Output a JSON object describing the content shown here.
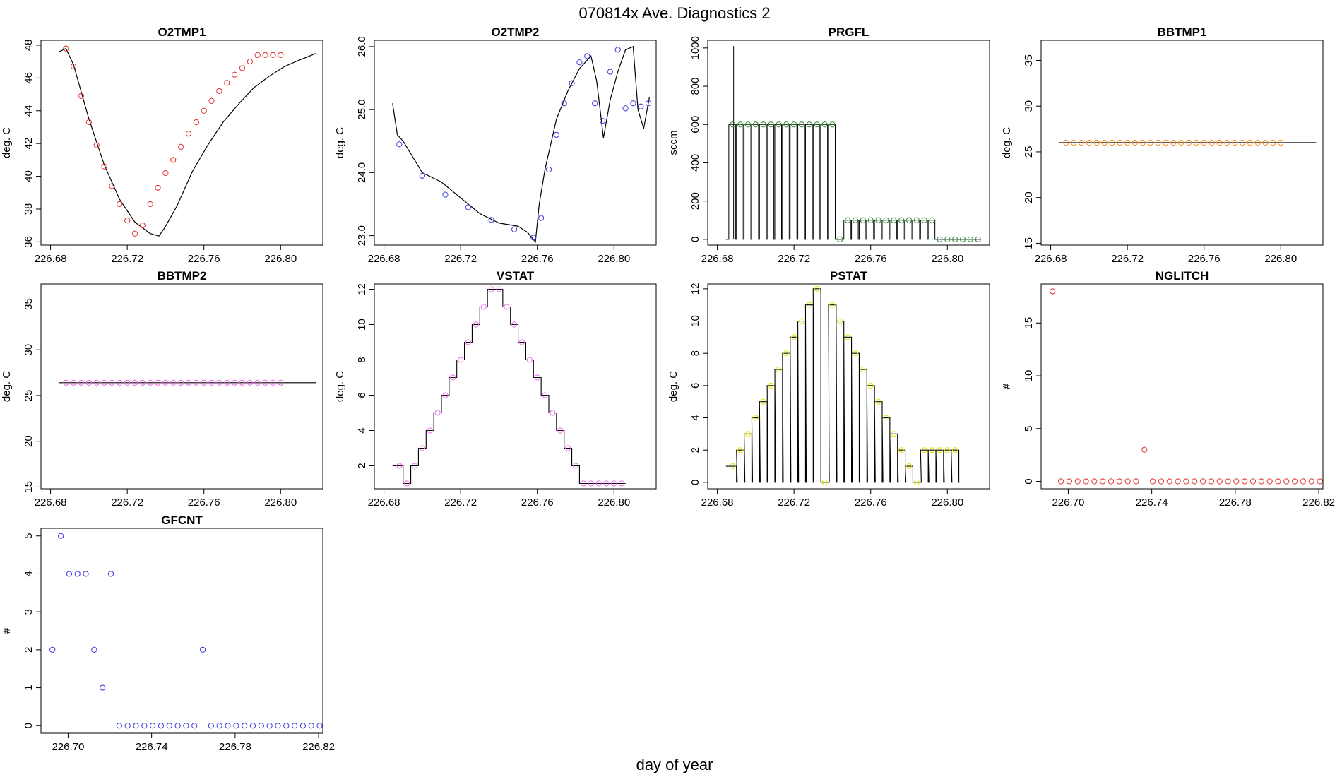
{
  "figure": {
    "title": "070814x   Ave. Diagnostics 2",
    "xlabel": "day of year"
  },
  "colors": {
    "black": "#000000",
    "red": "#e03030",
    "blue": "#3a3ae0",
    "green": "#2e8b2e",
    "orange": "#ff8c1a",
    "magenta": "#ee66ee",
    "yellow": "#e6e600"
  },
  "chart_data": [
    {
      "id": "o2tmp1",
      "type": "line",
      "title": "O2TMP1",
      "ylabel": "deg. C",
      "xlim": [
        226.675,
        226.822
      ],
      "ylim": [
        35.8,
        48.3
      ],
      "xticks": [
        226.68,
        226.72,
        226.76,
        226.8
      ],
      "xtick_labels": [
        "226.68",
        "226.72",
        "226.76",
        "226.80"
      ],
      "yticks": [
        36,
        38,
        40,
        42,
        44,
        46,
        48
      ],
      "ytick_labels": [
        "36",
        "38",
        "40",
        "42",
        "44",
        "46",
        "48"
      ],
      "line": {
        "color": "#000000",
        "x": [
          226.6845,
          226.688,
          226.692,
          226.7,
          226.708,
          226.716,
          226.724,
          226.732,
          226.7365,
          226.7395,
          226.746,
          226.754,
          226.762,
          226.77,
          226.778,
          226.786,
          226.794,
          226.802,
          226.81,
          226.8185
        ],
        "y": [
          47.6,
          47.8,
          46.8,
          43.5,
          40.7,
          38.6,
          37.2,
          36.5,
          36.35,
          36.85,
          38.2,
          40.3,
          41.9,
          43.3,
          44.4,
          45.4,
          46.1,
          46.7,
          47.1,
          47.5
        ]
      },
      "points": {
        "color": "#e03030",
        "x": [
          226.688,
          226.692,
          226.696,
          226.7,
          226.704,
          226.708,
          226.712,
          226.716,
          226.72,
          226.724,
          226.728,
          226.732,
          226.736,
          226.74,
          226.744,
          226.748,
          226.752,
          226.756,
          226.76,
          226.764,
          226.768,
          226.772,
          226.776,
          226.78,
          226.784,
          226.788,
          226.792,
          226.796,
          226.8
        ],
        "y": [
          47.8,
          46.7,
          44.9,
          43.3,
          41.9,
          40.6,
          39.4,
          38.3,
          37.3,
          36.5,
          37.0,
          38.3,
          39.3,
          40.2,
          41.0,
          41.8,
          42.6,
          43.3,
          44.0,
          44.6,
          45.2,
          45.7,
          46.2,
          46.6,
          47.0,
          47.4,
          47.4,
          47.4,
          47.4
        ]
      }
    },
    {
      "id": "o2tmp2",
      "type": "line",
      "title": "O2TMP2",
      "ylabel": "deg. C",
      "xlim": [
        226.675,
        226.822
      ],
      "ylim": [
        22.85,
        26.1
      ],
      "xticks": [
        226.68,
        226.72,
        226.76,
        226.8
      ],
      "xtick_labels": [
        "226.68",
        "226.72",
        "226.76",
        "226.80"
      ],
      "yticks": [
        23,
        24,
        25,
        26
      ],
      "ytick_labels": [
        "23.0",
        "24.0",
        "25.0",
        "26.0"
      ],
      "line": {
        "color": "#000000",
        "x": [
          226.6845,
          226.687,
          226.69,
          226.695,
          226.7,
          226.71,
          226.72,
          226.73,
          226.74,
          226.75,
          226.755,
          226.759,
          226.761,
          226.764,
          226.77,
          226.776,
          226.782,
          226.788,
          226.791,
          226.7945,
          226.798,
          226.802,
          226.806,
          226.81,
          226.8125,
          226.8155,
          226.8185
        ],
        "y": [
          25.1,
          24.6,
          24.5,
          24.25,
          24.0,
          23.85,
          23.6,
          23.35,
          23.2,
          23.15,
          23.05,
          22.9,
          23.5,
          24.05,
          24.85,
          25.3,
          25.65,
          25.85,
          25.45,
          24.55,
          25.15,
          25.6,
          25.95,
          26.0,
          25.0,
          24.7,
          25.2
        ]
      },
      "points": {
        "color": "#3a3ae0",
        "x": [
          226.688,
          226.7,
          226.712,
          226.724,
          226.736,
          226.748,
          226.758,
          226.762,
          226.766,
          226.77,
          226.774,
          226.778,
          226.782,
          226.786,
          226.79,
          226.794,
          226.798,
          226.802,
          226.806,
          226.81,
          226.814,
          226.818
        ],
        "y": [
          24.45,
          23.95,
          23.65,
          23.45,
          23.25,
          23.1,
          22.97,
          23.28,
          24.05,
          24.6,
          25.1,
          25.42,
          25.75,
          25.85,
          25.1,
          24.82,
          25.6,
          25.95,
          25.02,
          25.1,
          25.05,
          25.1
        ]
      }
    },
    {
      "id": "prgfl",
      "type": "line",
      "title": "PRGFL",
      "ylabel": "sccm",
      "xlim": [
        226.675,
        226.822
      ],
      "ylim": [
        -30,
        1040
      ],
      "xticks": [
        226.68,
        226.72,
        226.76,
        226.8
      ],
      "xtick_labels": [
        "226.68",
        "226.72",
        "226.76",
        "226.80"
      ],
      "yticks": [
        0,
        200,
        400,
        600,
        800,
        1000
      ],
      "ytick_labels": [
        "0",
        "200",
        "400",
        "600",
        "800",
        "1000"
      ],
      "points": {
        "color": "#2e8b2e",
        "x": [
          226.688,
          226.692,
          226.696,
          226.7,
          226.704,
          226.708,
          226.712,
          226.716,
          226.72,
          226.724,
          226.728,
          226.732,
          226.736,
          226.74,
          226.744,
          226.748,
          226.752,
          226.756,
          226.76,
          226.764,
          226.768,
          226.772,
          226.776,
          226.78,
          226.784,
          226.788,
          226.792,
          226.796,
          226.8,
          226.804,
          226.808,
          226.812,
          226.816
        ],
        "y": [
          600,
          600,
          600,
          600,
          600,
          600,
          600,
          600,
          600,
          600,
          600,
          600,
          600,
          600,
          0,
          100,
          100,
          100,
          100,
          100,
          100,
          100,
          100,
          100,
          100,
          100,
          100,
          0,
          0,
          0,
          0,
          0,
          0
        ]
      }
    },
    {
      "id": "bbtmp1",
      "type": "line",
      "title": "BBTMP1",
      "ylabel": "deg. C",
      "xlim": [
        226.675,
        226.822
      ],
      "ylim": [
        14.8,
        37.2
      ],
      "xticks": [
        226.68,
        226.72,
        226.76,
        226.8
      ],
      "xtick_labels": [
        "226.68",
        "226.72",
        "226.76",
        "226.80"
      ],
      "yticks": [
        15,
        20,
        25,
        30,
        35
      ],
      "ytick_labels": [
        "15",
        "20",
        "25",
        "30",
        "35"
      ],
      "line": {
        "color": "#000000",
        "x": [
          226.6845,
          226.8185
        ],
        "y": [
          26.0,
          26.0
        ]
      },
      "points": {
        "color": "#ff8c1a",
        "x": [
          226.688,
          226.692,
          226.696,
          226.7,
          226.704,
          226.708,
          226.712,
          226.716,
          226.72,
          226.724,
          226.728,
          226.732,
          226.736,
          226.74,
          226.744,
          226.748,
          226.752,
          226.756,
          226.76,
          226.764,
          226.768,
          226.772,
          226.776,
          226.78,
          226.784,
          226.788,
          226.792,
          226.796,
          226.8
        ],
        "y": [
          26,
          26,
          26,
          26,
          26,
          26,
          26,
          26,
          26,
          26,
          26,
          26,
          26,
          26,
          26,
          26,
          26,
          26,
          26,
          26,
          26,
          26,
          26,
          26,
          26,
          26,
          26,
          26,
          26
        ]
      }
    },
    {
      "id": "bbtmp2",
      "type": "line",
      "title": "BBTMP2",
      "ylabel": "deg. C",
      "xlim": [
        226.675,
        226.822
      ],
      "ylim": [
        14.8,
        37.2
      ],
      "xticks": [
        226.68,
        226.72,
        226.76,
        226.8
      ],
      "xtick_labels": [
        "226.68",
        "226.72",
        "226.76",
        "226.80"
      ],
      "yticks": [
        15,
        20,
        25,
        30,
        35
      ],
      "ytick_labels": [
        "15",
        "20",
        "25",
        "30",
        "35"
      ],
      "line": {
        "color": "#000000",
        "x": [
          226.6845,
          226.8185
        ],
        "y": [
          26.4,
          26.4
        ]
      },
      "points": {
        "color": "#ee66ee",
        "x": [
          226.688,
          226.692,
          226.696,
          226.7,
          226.704,
          226.708,
          226.712,
          226.716,
          226.72,
          226.724,
          226.728,
          226.732,
          226.736,
          226.74,
          226.744,
          226.748,
          226.752,
          226.756,
          226.76,
          226.764,
          226.768,
          226.772,
          226.776,
          226.78,
          226.784,
          226.788,
          226.792,
          226.796,
          226.8
        ],
        "y": [
          26.4,
          26.4,
          26.4,
          26.4,
          26.4,
          26.4,
          26.4,
          26.4,
          26.4,
          26.4,
          26.4,
          26.4,
          26.4,
          26.4,
          26.4,
          26.4,
          26.4,
          26.4,
          26.4,
          26.4,
          26.4,
          26.4,
          26.4,
          26.4,
          26.4,
          26.4,
          26.4,
          26.4,
          26.4
        ]
      }
    },
    {
      "id": "vstat",
      "type": "line",
      "title": "VSTAT",
      "ylabel": "deg. C",
      "xlim": [
        226.675,
        226.822
      ],
      "ylim": [
        0.7,
        12.3
      ],
      "xticks": [
        226.68,
        226.72,
        226.76,
        226.8
      ],
      "xtick_labels": [
        "226.68",
        "226.72",
        "226.76",
        "226.80"
      ],
      "yticks": [
        2,
        4,
        6,
        8,
        10,
        12
      ],
      "ytick_labels": [
        "2",
        "4",
        "6",
        "8",
        "10",
        "12"
      ],
      "points": {
        "color": "#ee66ee",
        "x": [
          226.688,
          226.692,
          226.696,
          226.7,
          226.704,
          226.708,
          226.712,
          226.716,
          226.72,
          226.724,
          226.728,
          226.732,
          226.736,
          226.74,
          226.744,
          226.748,
          226.752,
          226.756,
          226.76,
          226.764,
          226.768,
          226.772,
          226.776,
          226.78,
          226.784,
          226.788,
          226.792,
          226.796,
          226.8,
          226.804
        ],
        "y": [
          2,
          1,
          2,
          3,
          4,
          5,
          6,
          7,
          8,
          9,
          10,
          11,
          12,
          12,
          11,
          10,
          9,
          8,
          7,
          6,
          5,
          4,
          3,
          2,
          1,
          1,
          1,
          1,
          1,
          1
        ]
      }
    },
    {
      "id": "pstat",
      "type": "line",
      "title": "PSTAT",
      "ylabel": "deg. C",
      "xlim": [
        226.675,
        226.822
      ],
      "ylim": [
        -0.4,
        12.3
      ],
      "xticks": [
        226.68,
        226.72,
        226.76,
        226.8
      ],
      "xtick_labels": [
        "226.68",
        "226.72",
        "226.76",
        "226.80"
      ],
      "yticks": [
        0,
        2,
        4,
        6,
        8,
        10,
        12
      ],
      "ytick_labels": [
        "0",
        "2",
        "4",
        "6",
        "8",
        "10",
        "12"
      ],
      "points": {
        "color": "#e6e600",
        "x": [
          226.688,
          226.692,
          226.696,
          226.7,
          226.704,
          226.708,
          226.712,
          226.716,
          226.72,
          226.724,
          226.728,
          226.732,
          226.736,
          226.74,
          226.744,
          226.748,
          226.752,
          226.756,
          226.76,
          226.764,
          226.768,
          226.772,
          226.776,
          226.78,
          226.784,
          226.788,
          226.792,
          226.796,
          226.8,
          226.804
        ],
        "y": [
          1,
          2,
          3,
          4,
          5,
          6,
          7,
          8,
          9,
          10,
          11,
          12,
          0,
          11,
          10,
          9,
          8,
          7,
          6,
          5,
          4,
          3,
          2,
          1,
          0,
          2,
          2,
          2,
          2,
          2
        ]
      }
    },
    {
      "id": "nglitch",
      "type": "scatter",
      "title": "NGLITCH",
      "ylabel": "#",
      "xlim": [
        226.687,
        226.822
      ],
      "ylim": [
        -0.7,
        18.7
      ],
      "xticks": [
        226.7,
        226.74,
        226.78,
        226.82
      ],
      "xtick_labels": [
        "226.70",
        "226.74",
        "226.78",
        "226.82"
      ],
      "yticks": [
        0,
        5,
        10,
        15
      ],
      "ytick_labels": [
        "0",
        "5",
        "10",
        "15"
      ],
      "points": {
        "color": "#e03030",
        "x": [
          226.6925,
          226.6965,
          226.7005,
          226.7045,
          226.7085,
          226.7125,
          226.7165,
          226.7205,
          226.7245,
          226.7285,
          226.7325,
          226.7365,
          226.7405,
          226.7445,
          226.7485,
          226.7525,
          226.7565,
          226.7605,
          226.7645,
          226.7685,
          226.7725,
          226.7765,
          226.7805,
          226.7845,
          226.7885,
          226.7925,
          226.7965,
          226.8005,
          226.8045,
          226.8085,
          226.8125,
          226.8165,
          226.8205
        ],
        "y": [
          18,
          0,
          0,
          0,
          0,
          0,
          0,
          0,
          0,
          0,
          0,
          3,
          0,
          0,
          0,
          0,
          0,
          0,
          0,
          0,
          0,
          0,
          0,
          0,
          0,
          0,
          0,
          0,
          0,
          0,
          0,
          0,
          0
        ]
      }
    },
    {
      "id": "gfcnt",
      "type": "scatter",
      "title": "GFCNT",
      "ylabel": "#",
      "xlim": [
        226.687,
        226.822
      ],
      "ylim": [
        -0.2,
        5.2
      ],
      "xticks": [
        226.7,
        226.74,
        226.78,
        226.82
      ],
      "xtick_labels": [
        "226.70",
        "226.74",
        "226.78",
        "226.82"
      ],
      "yticks": [
        0,
        1,
        2,
        3,
        4,
        5
      ],
      "ytick_labels": [
        "0",
        "1",
        "2",
        "3",
        "4",
        "5"
      ],
      "points": {
        "color": "#3a3ae0",
        "x": [
          226.6925,
          226.6965,
          226.7005,
          226.7045,
          226.7085,
          226.7125,
          226.7165,
          226.7205,
          226.7245,
          226.7285,
          226.7325,
          226.7365,
          226.7405,
          226.7445,
          226.7485,
          226.7525,
          226.7565,
          226.7605,
          226.7645,
          226.7685,
          226.7725,
          226.7765,
          226.7805,
          226.7845,
          226.7885,
          226.7925,
          226.7965,
          226.8005,
          226.8045,
          226.8085,
          226.8125,
          226.8165,
          226.8205
        ],
        "y": [
          2,
          5,
          4,
          4,
          4,
          2,
          1,
          4,
          0,
          0,
          0,
          0,
          0,
          0,
          0,
          0,
          0,
          0,
          2,
          0,
          0,
          0,
          0,
          0,
          0,
          0,
          0,
          0,
          0,
          0,
          0,
          0,
          0
        ]
      }
    }
  ]
}
